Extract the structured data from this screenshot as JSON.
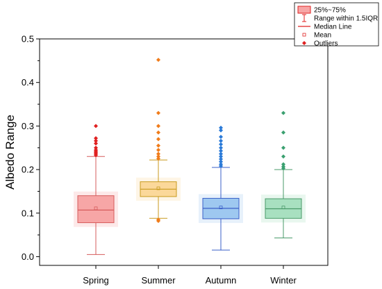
{
  "chart_data": {
    "type": "box",
    "ylabel": "Albedo Range",
    "xlabel": "",
    "ylim": [
      -0.02,
      0.5
    ],
    "yticks": [
      0.0,
      0.1,
      0.2,
      0.3,
      0.4,
      0.5
    ],
    "ytick_labels": [
      "0.0",
      "0.1",
      "0.2",
      "0.3",
      "0.4",
      "0.5"
    ],
    "categories": [
      "Spring",
      "Summer",
      "Autumn",
      "Winter"
    ],
    "legend": {
      "position": "top-right",
      "entries": [
        "25%~75%",
        "Range within 1.5IQR",
        "Median Line",
        "Mean",
        "Outliers"
      ]
    },
    "series": [
      {
        "category": "Spring",
        "color": "#d65c5c",
        "fill": "#f7a6a6",
        "whisker_low": 0.005,
        "q1": 0.078,
        "median": 0.107,
        "q3": 0.14,
        "whisker_high": 0.23,
        "mean": 0.111,
        "outlier_color": "#e02020",
        "outliers": [
          0.233,
          0.236,
          0.239,
          0.242,
          0.245,
          0.25,
          0.26,
          0.266,
          0.272,
          0.3
        ]
      },
      {
        "category": "Summer",
        "color": "#c89a1e",
        "fill": "#fbd89a",
        "whisker_low": 0.088,
        "q1": 0.138,
        "median": 0.155,
        "q3": 0.172,
        "whisker_high": 0.222,
        "mean": 0.157,
        "outlier_color": "#f07c1a",
        "outliers": [
          0.082,
          0.085,
          0.225,
          0.23,
          0.236,
          0.245,
          0.255,
          0.27,
          0.285,
          0.3,
          0.33,
          0.452
        ]
      },
      {
        "category": "Autumn",
        "color": "#3a5fc8",
        "fill": "#9ec8f0",
        "whisker_low": 0.015,
        "q1": 0.087,
        "median": 0.111,
        "q3": 0.134,
        "whisker_high": 0.205,
        "mean": 0.113,
        "outlier_color": "#2a7ad8",
        "outliers": [
          0.208,
          0.212,
          0.218,
          0.224,
          0.23,
          0.236,
          0.243,
          0.25,
          0.258,
          0.266,
          0.275,
          0.29,
          0.296
        ]
      },
      {
        "category": "Winter",
        "color": "#4a9a6a",
        "fill": "#a8e0c0",
        "whisker_low": 0.043,
        "q1": 0.088,
        "median": 0.11,
        "q3": 0.133,
        "whisker_high": 0.2,
        "mean": 0.113,
        "outlier_color": "#3aa070",
        "outliers": [
          0.203,
          0.207,
          0.212,
          0.23,
          0.25,
          0.285,
          0.33
        ]
      }
    ]
  }
}
